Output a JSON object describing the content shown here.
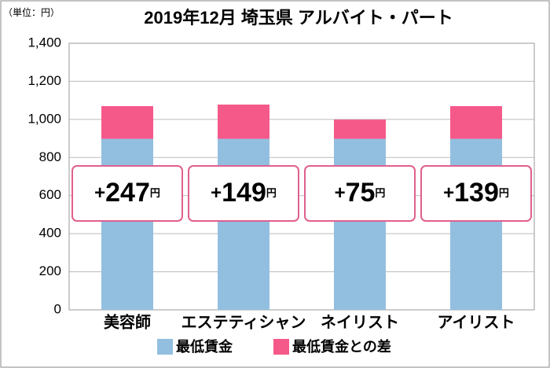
{
  "chart_data": {
    "type": "stacked_bar",
    "title": "2019年12月 埼玉県 アルバイト・パート",
    "unit_label": "（単位：円）",
    "categories": [
      "美容師",
      "エステティシャン",
      "ネイリスト",
      "アイリスト"
    ],
    "series": [
      {
        "name": "最低賃金",
        "color": "#92bfe0",
        "values": [
          898,
          898,
          898,
          898
        ]
      },
      {
        "name": "最低賃金との差",
        "color": "#f5598a",
        "values": [
          172,
          180,
          101,
          172
        ]
      }
    ],
    "annotations": [
      {
        "sign": "+",
        "number": "247",
        "unit": "円"
      },
      {
        "sign": "+",
        "number": "149",
        "unit": "円"
      },
      {
        "sign": "+",
        "number": "75",
        "unit": "円"
      },
      {
        "sign": "+",
        "number": "139",
        "unit": "円"
      }
    ],
    "ylim": [
      0,
      1400
    ],
    "yticks": [
      0,
      200,
      400,
      600,
      800,
      {
        "value": 1000,
        "label": "1,000"
      },
      {
        "value": 1200,
        "label": "1,200"
      },
      {
        "value": 1400,
        "label": "1,400"
      }
    ],
    "grid": true
  }
}
